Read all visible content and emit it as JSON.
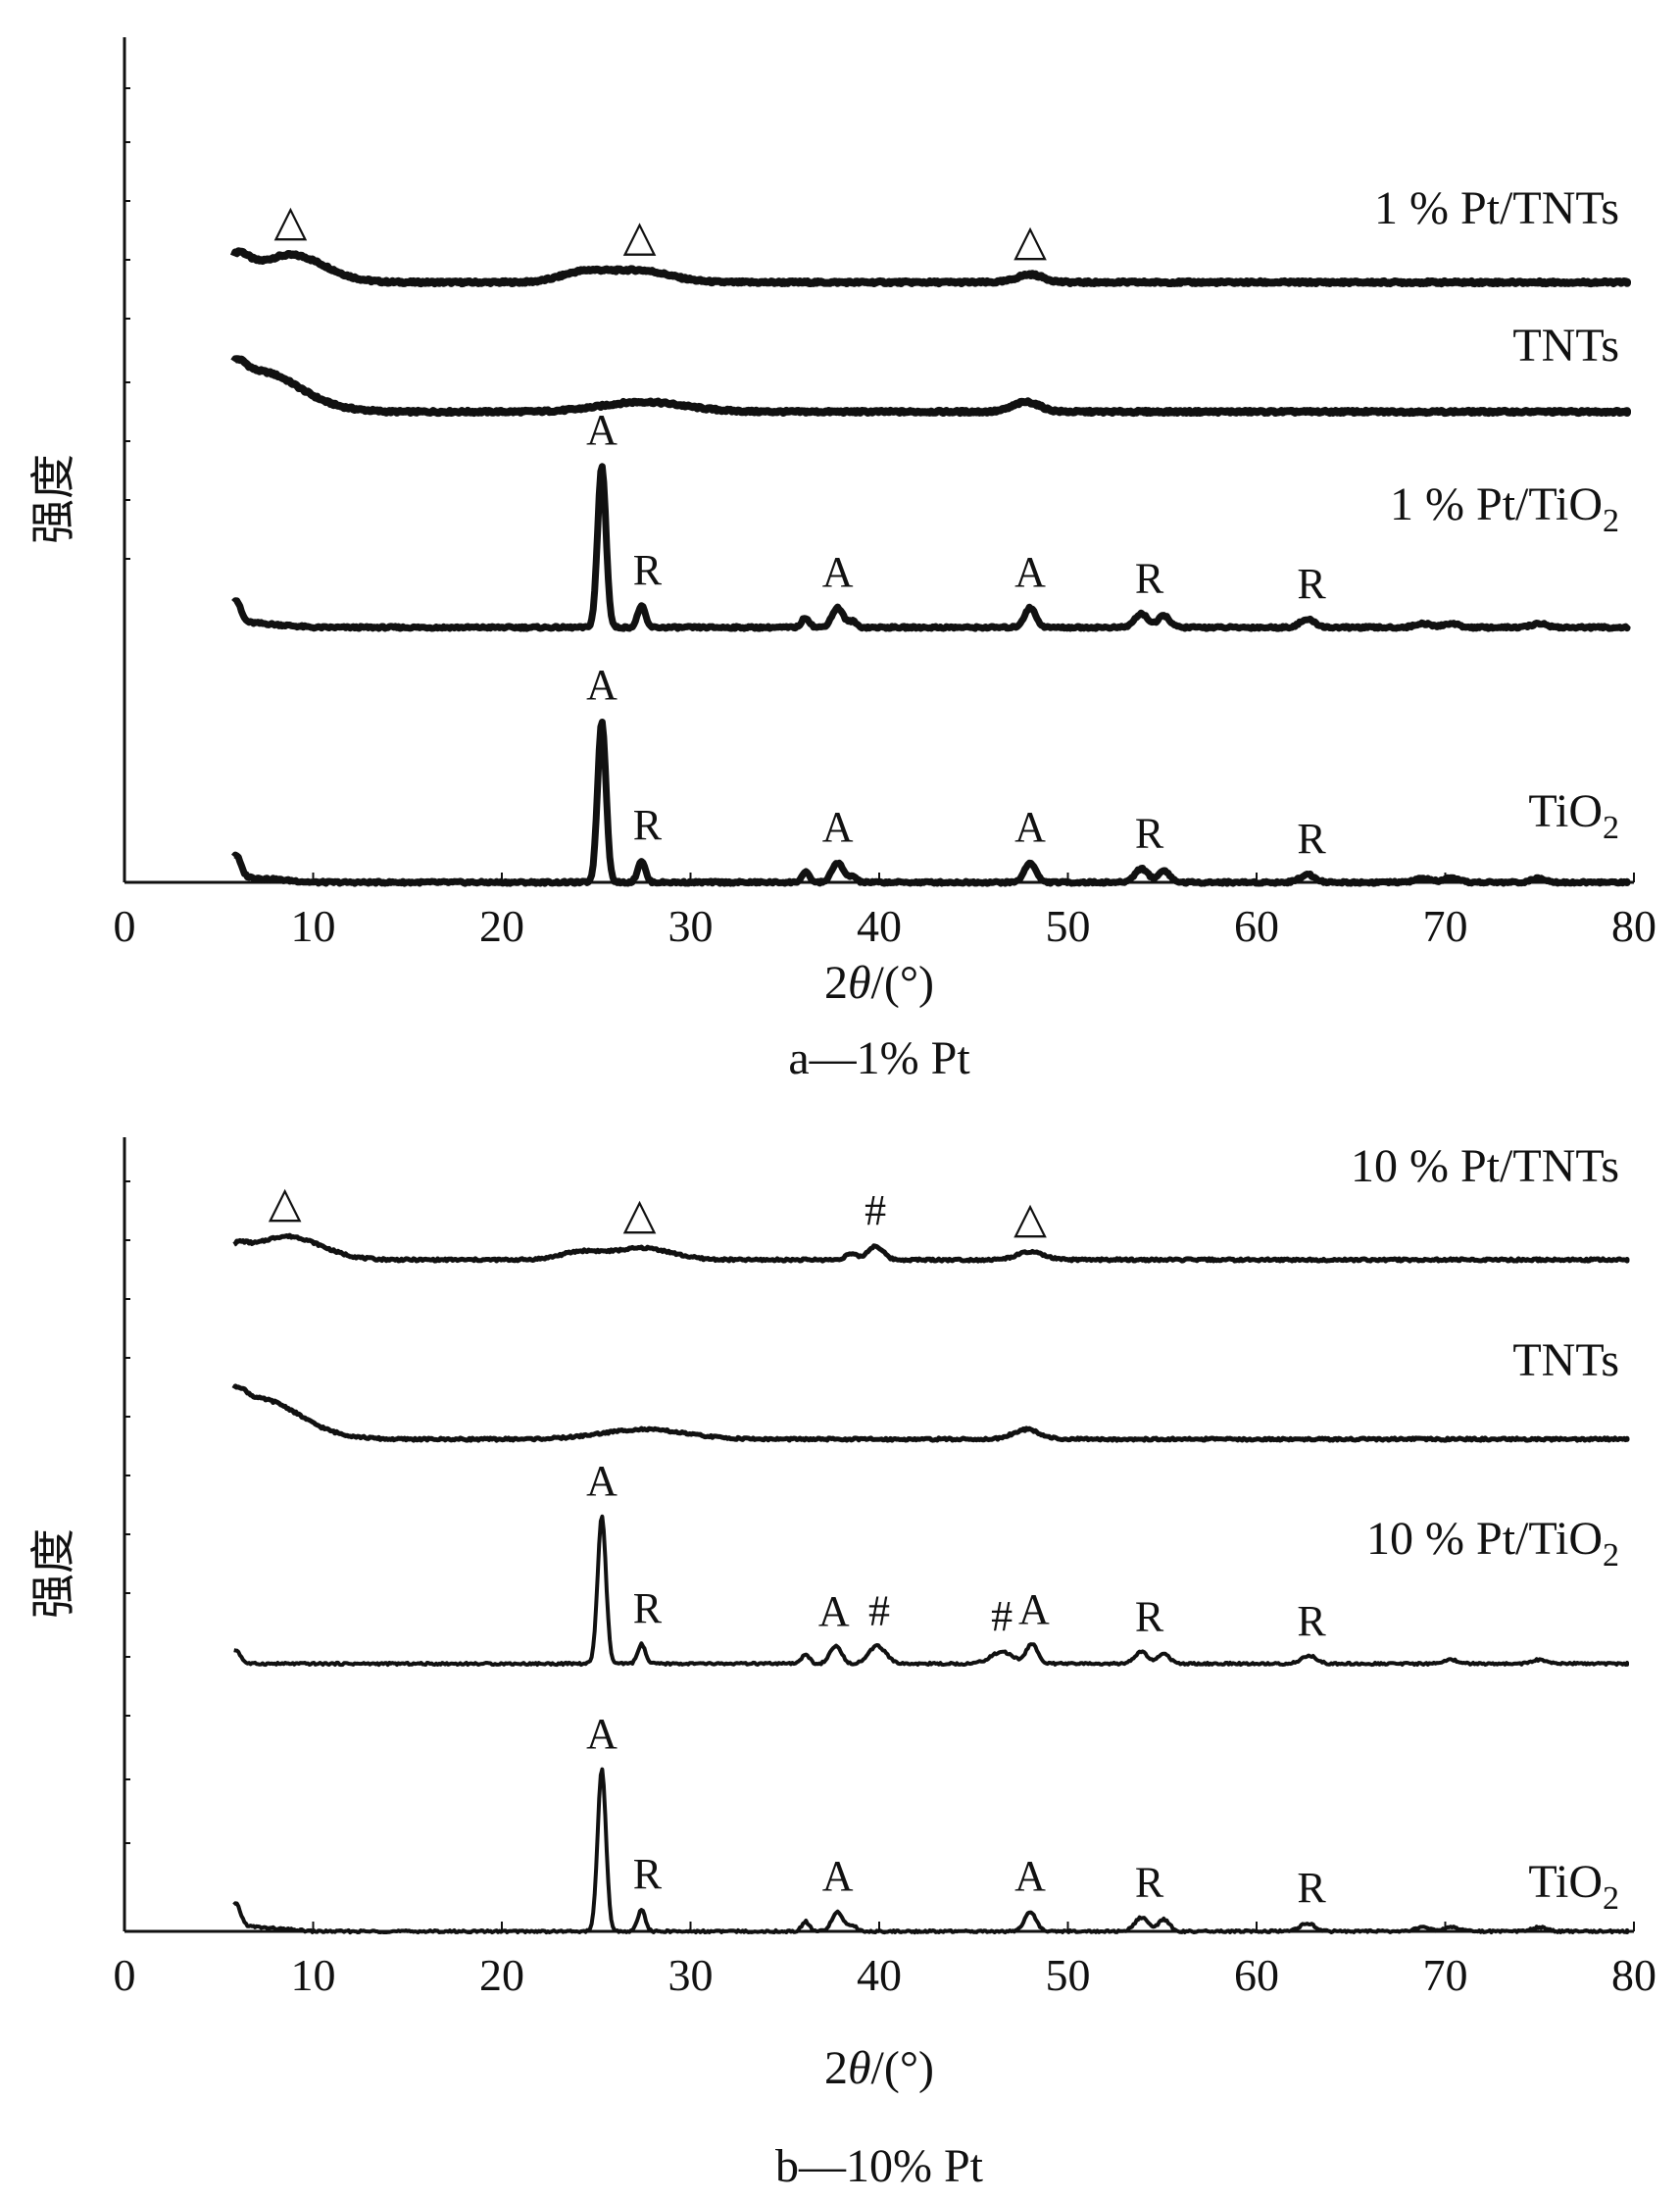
{
  "chart_data": [
    {
      "type": "line",
      "caption": "a—1% Pt",
      "xlabel": "2θ/(°)",
      "ylabel": "强度",
      "xlim": [
        0,
        80
      ],
      "xticks": [
        0,
        10,
        20,
        30,
        40,
        50,
        60,
        70,
        80
      ],
      "y_tick_labels_shown": false,
      "grid": false,
      "series": [
        {
          "name": "1 % Pt/TNTs",
          "profile": "tnt",
          "markers": [
            {
              "text": "△",
              "x": 8.8
            },
            {
              "text": "△",
              "x": 27.3
            },
            {
              "text": "△",
              "x": 48.0
            }
          ]
        },
        {
          "name": "TNTs",
          "profile": "tnt_bare",
          "markers": []
        },
        {
          "name": "1 % Pt/TiO2",
          "profile": "tio2",
          "markers": [
            {
              "text": "A",
              "x": 25.3
            },
            {
              "text": "R",
              "x": 27.4
            },
            {
              "text": "A",
              "x": 37.8
            },
            {
              "text": "A",
              "x": 48.0
            },
            {
              "text": "R",
              "x": 54.0
            },
            {
              "text": "R",
              "x": 62.6
            }
          ]
        },
        {
          "name": "TiO2",
          "profile": "tio2",
          "markers": [
            {
              "text": "A",
              "x": 25.3
            },
            {
              "text": "R",
              "x": 27.4
            },
            {
              "text": "A",
              "x": 37.8
            },
            {
              "text": "A",
              "x": 48.0
            },
            {
              "text": "R",
              "x": 54.0
            },
            {
              "text": "R",
              "x": 62.6
            }
          ]
        }
      ]
    },
    {
      "type": "line",
      "caption": "b—10% Pt",
      "xlabel": "2θ/(°)",
      "ylabel": "强度",
      "xlim": [
        0,
        80
      ],
      "xticks": [
        0,
        10,
        20,
        30,
        40,
        50,
        60,
        70,
        80
      ],
      "y_tick_labels_shown": false,
      "grid": false,
      "series": [
        {
          "name": "10 % Pt/TNTs",
          "profile": "tnt_pt",
          "markers": [
            {
              "text": "△",
              "x": 8.5
            },
            {
              "text": "△",
              "x": 27.3
            },
            {
              "text": "#",
              "x": 39.8
            },
            {
              "text": "△",
              "x": 48.0
            }
          ]
        },
        {
          "name": "TNTs",
          "profile": "tnt_bare",
          "markers": []
        },
        {
          "name": "10 % Pt/TiO2",
          "profile": "tio2_pt",
          "markers": [
            {
              "text": "A",
              "x": 25.3
            },
            {
              "text": "R",
              "x": 27.4
            },
            {
              "text": "A",
              "x": 37.6
            },
            {
              "text": "#",
              "x": 40.0
            },
            {
              "text": "#",
              "x": 46.5
            },
            {
              "text": "A",
              "x": 48.2
            },
            {
              "text": "R",
              "x": 54.0
            },
            {
              "text": "R",
              "x": 62.6
            }
          ]
        },
        {
          "name": "TiO2",
          "profile": "tio2",
          "markers": [
            {
              "text": "A",
              "x": 25.3
            },
            {
              "text": "R",
              "x": 27.4
            },
            {
              "text": "A",
              "x": 37.8
            },
            {
              "text": "A",
              "x": 48.0
            },
            {
              "text": "R",
              "x": 54.0
            },
            {
              "text": "R",
              "x": 62.6
            }
          ]
        }
      ]
    }
  ]
}
